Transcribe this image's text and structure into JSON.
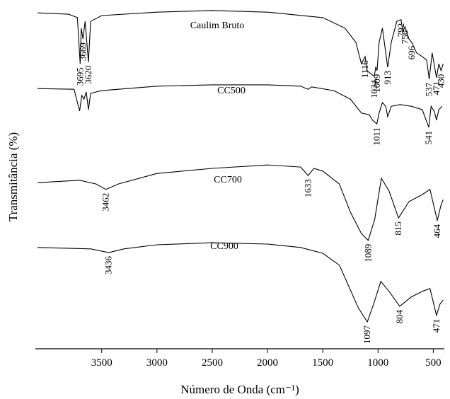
{
  "chart_data": {
    "type": "line",
    "xlabel": "Número de Onda (cm⁻¹)",
    "ylabel": "Transmitância (%)",
    "xlim": [
      4100,
      400
    ],
    "ylim": [
      0,
      100
    ],
    "xticks": [
      3500,
      3000,
      2500,
      2000,
      1500,
      1000,
      500
    ],
    "series": [
      {
        "name": "Caulim Bruto",
        "color": "#000000",
        "x": [
          4080,
          3800,
          3720,
          3695,
          3685,
          3669,
          3650,
          3620,
          3600,
          3500,
          3000,
          2500,
          2000,
          1500,
          1300,
          1200,
          1150,
          1116,
          1100,
          1034,
          1020,
          1009,
          990,
          960,
          913,
          880,
          830,
          792,
          775,
          756,
          720,
          696,
          650,
          600,
          560,
          537,
          510,
          471,
          450,
          430,
          410
        ],
        "values": [
          98.3,
          97.9,
          96.9,
          83.3,
          93.8,
          90.6,
          95.8,
          83.8,
          95.8,
          97.5,
          98.5,
          99.0,
          98.5,
          96.9,
          93.8,
          89.6,
          83.3,
          85.4,
          81.3,
          79.6,
          82.3,
          81.3,
          89.6,
          93.8,
          82.3,
          89.6,
          95.8,
          96.3,
          92.7,
          94.2,
          90.6,
          89.6,
          86.5,
          85.4,
          84.4,
          78.8,
          86.5,
          79.2,
          83.3,
          81.3,
          83.3
        ],
        "peaks": [
          3695,
          3669,
          3620,
          1116,
          1034,
          1009,
          913,
          792,
          756,
          696,
          537,
          471,
          430
        ]
      },
      {
        "name": "CC500",
        "color": "#000000",
        "x": [
          4080,
          3750,
          3700,
          3680,
          3660,
          3640,
          3620,
          3600,
          3500,
          3000,
          2500,
          2000,
          1700,
          1633,
          1600,
          1400,
          1250,
          1150,
          1080,
          1050,
          1011,
          990,
          960,
          930,
          913,
          880,
          800,
          700,
          600,
          541,
          520,
          490,
          471,
          450,
          420
        ],
        "values": [
          76.0,
          75.8,
          69.4,
          74.0,
          72.9,
          75.0,
          69.8,
          74.6,
          75.4,
          76.7,
          77.1,
          77.1,
          76.7,
          75.8,
          76.5,
          75.4,
          72.9,
          68.8,
          68.3,
          66.7,
          65.6,
          68.8,
          71.9,
          70.8,
          67.7,
          70.8,
          71.3,
          70.8,
          69.8,
          64.6,
          70.8,
          69.2,
          66.7,
          69.8,
          70.8
        ],
        "peaks": [
          1011,
          541
        ]
      },
      {
        "name": "CC700",
        "color": "#000000",
        "x": [
          4080,
          3700,
          3550,
          3462,
          3350,
          3000,
          2500,
          2000,
          1700,
          1633,
          1580,
          1500,
          1350,
          1250,
          1150,
          1089,
          1030,
          970,
          900,
          815,
          720,
          600,
          530,
          464,
          430,
          410
        ],
        "values": [
          48.3,
          49.0,
          47.9,
          46.3,
          47.9,
          51.0,
          52.5,
          53.5,
          52.9,
          50.4,
          52.5,
          51.7,
          47.9,
          39.6,
          33.3,
          31.3,
          37.5,
          49.6,
          45.8,
          37.9,
          42.7,
          44.8,
          46.3,
          37.1,
          41.7,
          43.3
        ],
        "peaks": [
          3462,
          1633,
          1089,
          815,
          464
        ]
      },
      {
        "name": "CC900",
        "color": "#000000",
        "x": [
          4080,
          3600,
          3436,
          3300,
          3000,
          2500,
          2000,
          1700,
          1500,
          1350,
          1250,
          1180,
          1097,
          1040,
          975,
          900,
          804,
          700,
          600,
          530,
          471,
          440,
          410
        ],
        "values": [
          29.2,
          28.8,
          27.7,
          28.8,
          30.0,
          30.6,
          30.2,
          29.2,
          27.5,
          24.0,
          16.7,
          11.5,
          7.3,
          12.5,
          19.2,
          16.3,
          11.9,
          14.6,
          16.3,
          17.1,
          9.2,
          12.5,
          13.8
        ],
        "peaks": [
          3436,
          1097,
          804,
          471
        ]
      }
    ]
  }
}
